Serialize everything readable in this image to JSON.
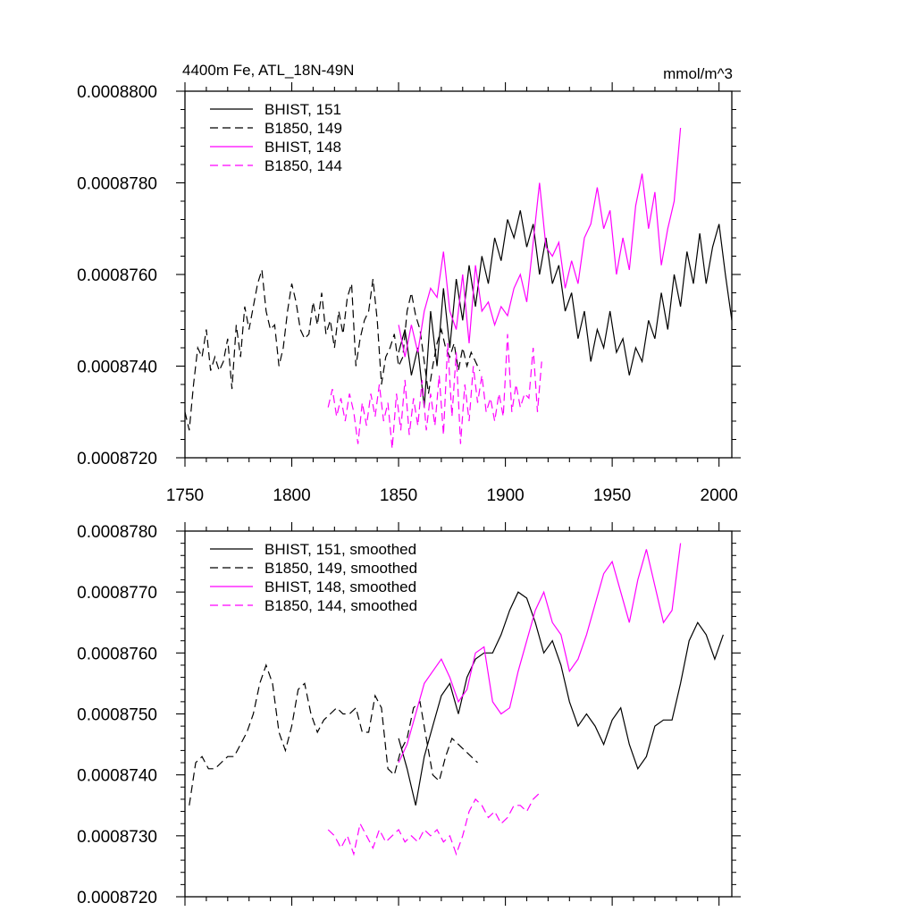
{
  "figure": {
    "title_left": "4400m Fe, ATL_18N-49N",
    "title_right": "mmol/m^3"
  },
  "chart_data": [
    {
      "type": "line",
      "id": "top",
      "title": "4400m Fe, ATL_18N-49N",
      "units": "mmol/m^3",
      "xlim": [
        1750,
        2006
      ],
      "ylim": [
        0.000872,
        0.00088
      ],
      "xticks": [
        1750,
        1800,
        1850,
        1900,
        1950,
        2000
      ],
      "xtick_labels": [
        "1750",
        "1800",
        "1850",
        "1900",
        "1950",
        "2000"
      ],
      "yticks": [
        0.000872,
        0.000874,
        0.000876,
        0.000878,
        0.00088
      ],
      "ytick_labels": [
        "0.0008720",
        "0.0008740",
        "0.0008760",
        "0.0008780",
        "0.0008800"
      ],
      "legend_position": "top-left",
      "series": [
        {
          "name": "BHIST, 151",
          "color": "#000000",
          "dash": "solid",
          "x": [
            1850,
            1853,
            1856,
            1859,
            1862,
            1865,
            1868,
            1871,
            1874,
            1877,
            1880,
            1883,
            1886,
            1889,
            1892,
            1895,
            1898,
            1901,
            1904,
            1907,
            1910,
            1913,
            1916,
            1919,
            1922,
            1925,
            1928,
            1931,
            1934,
            1937,
            1940,
            1943,
            1946,
            1949,
            1952,
            1955,
            1958,
            1961,
            1964,
            1967,
            1970,
            1973,
            1976,
            1979,
            1982,
            1985,
            1988,
            1991,
            1994,
            1997,
            2000,
            2003,
            2006
          ],
          "y": [
            0.0008743,
            0.0008748,
            0.0008738,
            0.0008744,
            0.0008731,
            0.0008752,
            0.000874,
            0.0008757,
            0.0008744,
            0.0008759,
            0.000875,
            0.0008762,
            0.0008753,
            0.0008764,
            0.0008758,
            0.0008768,
            0.0008763,
            0.0008772,
            0.0008768,
            0.0008774,
            0.0008766,
            0.0008771,
            0.000876,
            0.0008768,
            0.0008758,
            0.0008762,
            0.0008752,
            0.0008756,
            0.0008746,
            0.0008752,
            0.0008741,
            0.0008748,
            0.0008744,
            0.0008752,
            0.0008743,
            0.0008746,
            0.0008738,
            0.0008744,
            0.0008741,
            0.000875,
            0.0008746,
            0.0008756,
            0.0008748,
            0.000876,
            0.0008753,
            0.0008765,
            0.0008758,
            0.0008769,
            0.0008758,
            0.0008766,
            0.0008771,
            0.000876,
            0.000875
          ]
        },
        {
          "name": "B1850, 149",
          "color": "#000000",
          "dash": "dashed",
          "x": [
            1750,
            1752,
            1754,
            1756,
            1758,
            1760,
            1762,
            1764,
            1766,
            1768,
            1770,
            1772,
            1774,
            1776,
            1778,
            1780,
            1782,
            1784,
            1786,
            1788,
            1790,
            1792,
            1794,
            1796,
            1798,
            1800,
            1802,
            1804,
            1806,
            1808,
            1810,
            1812,
            1814,
            1816,
            1818,
            1820,
            1822,
            1824,
            1826,
            1828,
            1830,
            1832,
            1834,
            1836,
            1838,
            1840,
            1842,
            1844,
            1846,
            1848,
            1850,
            1852,
            1854,
            1856,
            1858,
            1860,
            1862,
            1864,
            1866,
            1868,
            1870,
            1872,
            1874,
            1876,
            1878,
            1880,
            1882,
            1884,
            1886,
            1888
          ],
          "y": [
            0.000873,
            0.0008726,
            0.0008736,
            0.0008744,
            0.0008742,
            0.0008748,
            0.0008739,
            0.0008742,
            0.0008739,
            0.0008741,
            0.0008746,
            0.0008735,
            0.0008749,
            0.0008742,
            0.0008753,
            0.0008748,
            0.0008753,
            0.0008758,
            0.0008761,
            0.0008752,
            0.0008748,
            0.0008749,
            0.000874,
            0.0008744,
            0.0008752,
            0.0008758,
            0.0008754,
            0.0008748,
            0.0008746,
            0.0008747,
            0.0008754,
            0.0008749,
            0.0008756,
            0.0008747,
            0.000875,
            0.0008744,
            0.0008752,
            0.0008747,
            0.0008755,
            0.0008758,
            0.000874,
            0.0008746,
            0.000875,
            0.0008752,
            0.0008759,
            0.000875,
            0.0008736,
            0.0008742,
            0.0008744,
            0.0008747,
            0.000874,
            0.0008742,
            0.0008752,
            0.0008756,
            0.0008751,
            0.0008748,
            0.0008741,
            0.0008734,
            0.000874,
            0.0008745,
            0.0008748,
            0.0008744,
            0.0008742,
            0.0008745,
            0.0008739,
            0.0008744,
            0.000874,
            0.0008743,
            0.0008741,
            0.0008739
          ]
        },
        {
          "name": "BHIST, 148",
          "color": "#ff00ff",
          "dash": "solid",
          "x": [
            1850,
            1853,
            1856,
            1859,
            1862,
            1865,
            1868,
            1871,
            1874,
            1877,
            1880,
            1883,
            1886,
            1889,
            1892,
            1895,
            1898,
            1901,
            1904,
            1907,
            1910,
            1913,
            1916,
            1919,
            1922,
            1925,
            1928,
            1931,
            1934,
            1937,
            1940,
            1943,
            1946,
            1949,
            1952,
            1955,
            1958,
            1961,
            1964,
            1967,
            1970,
            1973,
            1976,
            1979,
            1982
          ],
          "y": [
            0.0008749,
            0.0008742,
            0.0008749,
            0.0008743,
            0.0008752,
            0.0008757,
            0.0008755,
            0.0008765,
            0.0008752,
            0.0008748,
            0.000876,
            0.0008745,
            0.0008762,
            0.0008752,
            0.0008754,
            0.0008749,
            0.0008753,
            0.0008751,
            0.0008757,
            0.000876,
            0.0008754,
            0.0008767,
            0.000878,
            0.0008766,
            0.0008764,
            0.0008767,
            0.0008757,
            0.0008763,
            0.0008758,
            0.0008768,
            0.0008771,
            0.0008779,
            0.000877,
            0.0008774,
            0.000876,
            0.0008768,
            0.0008761,
            0.0008775,
            0.0008782,
            0.000877,
            0.0008778,
            0.0008762,
            0.000877,
            0.0008776,
            0.0008792
          ]
        },
        {
          "name": "B1850, 144",
          "color": "#ff00ff",
          "dash": "dashed",
          "x": [
            1817,
            1819,
            1821,
            1823,
            1825,
            1827,
            1829,
            1831,
            1833,
            1835,
            1837,
            1839,
            1841,
            1843,
            1845,
            1847,
            1849,
            1851,
            1853,
            1855,
            1857,
            1859,
            1861,
            1863,
            1865,
            1867,
            1869,
            1871,
            1873,
            1875,
            1877,
            1879,
            1881,
            1883,
            1885,
            1887,
            1889,
            1891,
            1893,
            1895,
            1897,
            1899,
            1901,
            1903,
            1905,
            1907,
            1909,
            1911,
            1913,
            1915,
            1917
          ],
          "y": [
            0.0008731,
            0.0008735,
            0.0008729,
            0.0008733,
            0.0008728,
            0.0008734,
            0.000873,
            0.0008723,
            0.0008732,
            0.0008727,
            0.0008734,
            0.0008729,
            0.0008736,
            0.0008728,
            0.0008732,
            0.0008722,
            0.0008734,
            0.0008726,
            0.0008737,
            0.0008725,
            0.0008733,
            0.0008727,
            0.0008737,
            0.0008726,
            0.0008734,
            0.0008727,
            0.0008738,
            0.0008725,
            0.0008745,
            0.0008729,
            0.0008743,
            0.0008723,
            0.0008736,
            0.0008728,
            0.000874,
            0.0008732,
            0.0008738,
            0.000873,
            0.0008733,
            0.0008728,
            0.0008734,
            0.0008729,
            0.0008747,
            0.000873,
            0.0008736,
            0.0008731,
            0.0008734,
            0.0008733,
            0.0008744,
            0.000873,
            0.0008741
          ]
        }
      ]
    },
    {
      "type": "line",
      "id": "bottom",
      "xlim": [
        1750,
        2006
      ],
      "ylim": [
        0.000872,
        0.000878
      ],
      "xticks": [
        1750,
        1800,
        1850,
        1900,
        1950,
        2000
      ],
      "yticks": [
        0.000872,
        0.000873,
        0.000874,
        0.000875,
        0.000876,
        0.000877,
        0.000878
      ],
      "ytick_labels": [
        "0.0008720",
        "0.0008730",
        "0.0008740",
        "0.0008750",
        "0.0008760",
        "0.0008770",
        "0.0008780"
      ],
      "legend_position": "top-left",
      "series": [
        {
          "name": "BHIST, 151, smoothed",
          "color": "#000000",
          "dash": "solid",
          "x": [
            1850,
            1854,
            1858,
            1862,
            1866,
            1870,
            1874,
            1878,
            1882,
            1886,
            1890,
            1894,
            1898,
            1902,
            1906,
            1910,
            1914,
            1918,
            1922,
            1926,
            1930,
            1934,
            1938,
            1942,
            1946,
            1950,
            1954,
            1958,
            1962,
            1966,
            1970,
            1974,
            1978,
            1982,
            1986,
            1990,
            1994,
            1998,
            2002
          ],
          "y": [
            0.0008746,
            0.0008741,
            0.0008735,
            0.0008743,
            0.0008748,
            0.0008753,
            0.0008755,
            0.000875,
            0.0008756,
            0.0008759,
            0.000876,
            0.000876,
            0.0008763,
            0.0008767,
            0.000877,
            0.0008769,
            0.0008765,
            0.000876,
            0.0008762,
            0.0008758,
            0.0008752,
            0.0008748,
            0.000875,
            0.0008748,
            0.0008745,
            0.0008749,
            0.0008751,
            0.0008745,
            0.0008741,
            0.0008743,
            0.0008748,
            0.0008749,
            0.0008749,
            0.0008755,
            0.0008762,
            0.0008765,
            0.0008763,
            0.0008759,
            0.0008763
          ]
        },
        {
          "name": "B1850, 149, smoothed",
          "color": "#000000",
          "dash": "dashed",
          "x": [
            1752,
            1755,
            1758,
            1761,
            1764,
            1767,
            1770,
            1773,
            1776,
            1779,
            1782,
            1785,
            1788,
            1791,
            1794,
            1797,
            1800,
            1803,
            1806,
            1809,
            1812,
            1815,
            1818,
            1821,
            1824,
            1827,
            1830,
            1833,
            1836,
            1839,
            1842,
            1845,
            1848,
            1851,
            1854,
            1857,
            1860,
            1863,
            1866,
            1869,
            1872,
            1875,
            1878,
            1881,
            1884,
            1887
          ],
          "y": [
            0.0008735,
            0.0008742,
            0.0008743,
            0.0008741,
            0.0008741,
            0.0008742,
            0.0008743,
            0.0008743,
            0.0008745,
            0.0008747,
            0.000875,
            0.0008755,
            0.0008758,
            0.0008755,
            0.0008747,
            0.0008744,
            0.0008748,
            0.0008754,
            0.0008755,
            0.000875,
            0.0008747,
            0.0008749,
            0.000875,
            0.0008751,
            0.000875,
            0.000875,
            0.0008751,
            0.0008747,
            0.0008747,
            0.0008753,
            0.0008751,
            0.0008741,
            0.000874,
            0.0008744,
            0.0008746,
            0.0008751,
            0.0008752,
            0.0008746,
            0.000874,
            0.0008739,
            0.0008743,
            0.0008746,
            0.0008745,
            0.0008744,
            0.0008743,
            0.0008742
          ]
        },
        {
          "name": "BHIST, 148, smoothed",
          "color": "#ff00ff",
          "dash": "solid",
          "x": [
            1850,
            1854,
            1858,
            1862,
            1866,
            1870,
            1874,
            1878,
            1882,
            1886,
            1890,
            1894,
            1898,
            1902,
            1906,
            1910,
            1914,
            1918,
            1922,
            1926,
            1930,
            1934,
            1938,
            1942,
            1946,
            1950,
            1954,
            1958,
            1962,
            1966,
            1970,
            1974,
            1978,
            1982
          ],
          "y": [
            0.0008742,
            0.0008745,
            0.000875,
            0.0008755,
            0.0008757,
            0.0008759,
            0.0008756,
            0.0008752,
            0.0008754,
            0.000876,
            0.0008761,
            0.0008752,
            0.000875,
            0.0008751,
            0.0008757,
            0.0008762,
            0.0008767,
            0.000877,
            0.0008765,
            0.0008763,
            0.0008757,
            0.0008759,
            0.0008763,
            0.0008768,
            0.0008773,
            0.0008775,
            0.000877,
            0.0008765,
            0.0008772,
            0.0008777,
            0.0008771,
            0.0008765,
            0.0008767,
            0.0008778
          ]
        },
        {
          "name": "B1850, 144, smoothed",
          "color": "#ff00ff",
          "dash": "dashed",
          "x": [
            1817,
            1820,
            1823,
            1826,
            1829,
            1832,
            1835,
            1838,
            1841,
            1844,
            1847,
            1850,
            1853,
            1856,
            1859,
            1862,
            1865,
            1868,
            1871,
            1874,
            1877,
            1880,
            1883,
            1886,
            1889,
            1892,
            1895,
            1898,
            1901,
            1904,
            1907,
            1910,
            1913,
            1916
          ],
          "y": [
            0.0008731,
            0.000873,
            0.0008728,
            0.000873,
            0.0008727,
            0.0008732,
            0.000873,
            0.0008728,
            0.0008731,
            0.0008729,
            0.000873,
            0.0008731,
            0.0008729,
            0.000873,
            0.0008729,
            0.0008731,
            0.000873,
            0.0008731,
            0.0008729,
            0.000873,
            0.0008727,
            0.000873,
            0.0008734,
            0.0008736,
            0.0008735,
            0.0008733,
            0.0008734,
            0.0008732,
            0.0008733,
            0.0008735,
            0.0008735,
            0.0008734,
            0.0008736,
            0.0008737
          ]
        }
      ]
    }
  ]
}
